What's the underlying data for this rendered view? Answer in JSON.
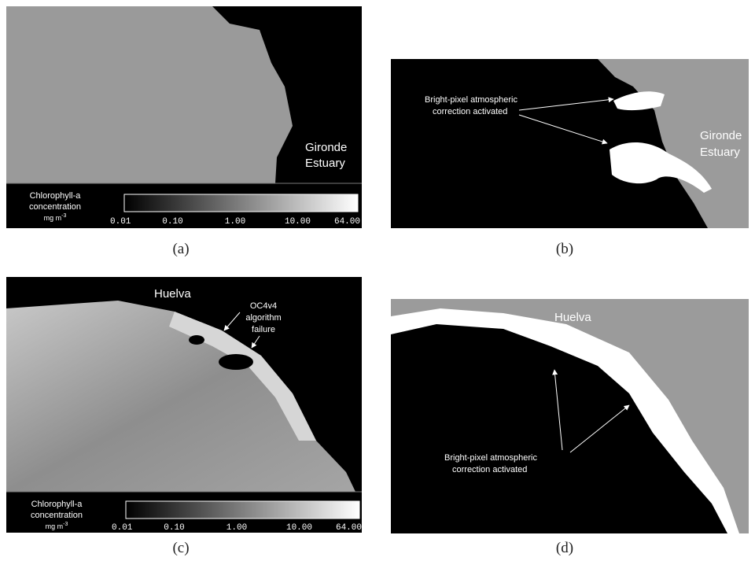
{
  "panels": [
    {
      "caption": "(a)",
      "place_lines": [
        "Gironde",
        "Estuary"
      ],
      "colorbar": {
        "title_lines": [
          "Chlorophyll-a",
          "concentration"
        ],
        "unit": "mg m",
        "unit_sup": "-3",
        "ticks": [
          "0.01",
          "0.10",
          "1.00",
          "10.00",
          "64.00"
        ]
      }
    },
    {
      "caption": "(b)",
      "place_lines": [
        "Gironde",
        "Estuary"
      ],
      "note_lines": [
        "Bright-pixel atmospheric",
        "correction activated"
      ]
    },
    {
      "caption": "(c)",
      "place_lines": [
        "Huelva"
      ],
      "note_lines": [
        "OC4v4",
        "algorithm",
        "failure"
      ],
      "colorbar": {
        "title_lines": [
          "Chlorophyll-a",
          "concentration"
        ],
        "unit": "mg m",
        "unit_sup": "-3",
        "ticks": [
          "0.01",
          "0.10",
          "1.00",
          "10.00",
          "64.00"
        ]
      }
    },
    {
      "caption": "(d)",
      "place_lines": [
        "Huelva"
      ],
      "note_lines": [
        "Bright-pixel atmospheric",
        "correction activated"
      ]
    }
  ]
}
